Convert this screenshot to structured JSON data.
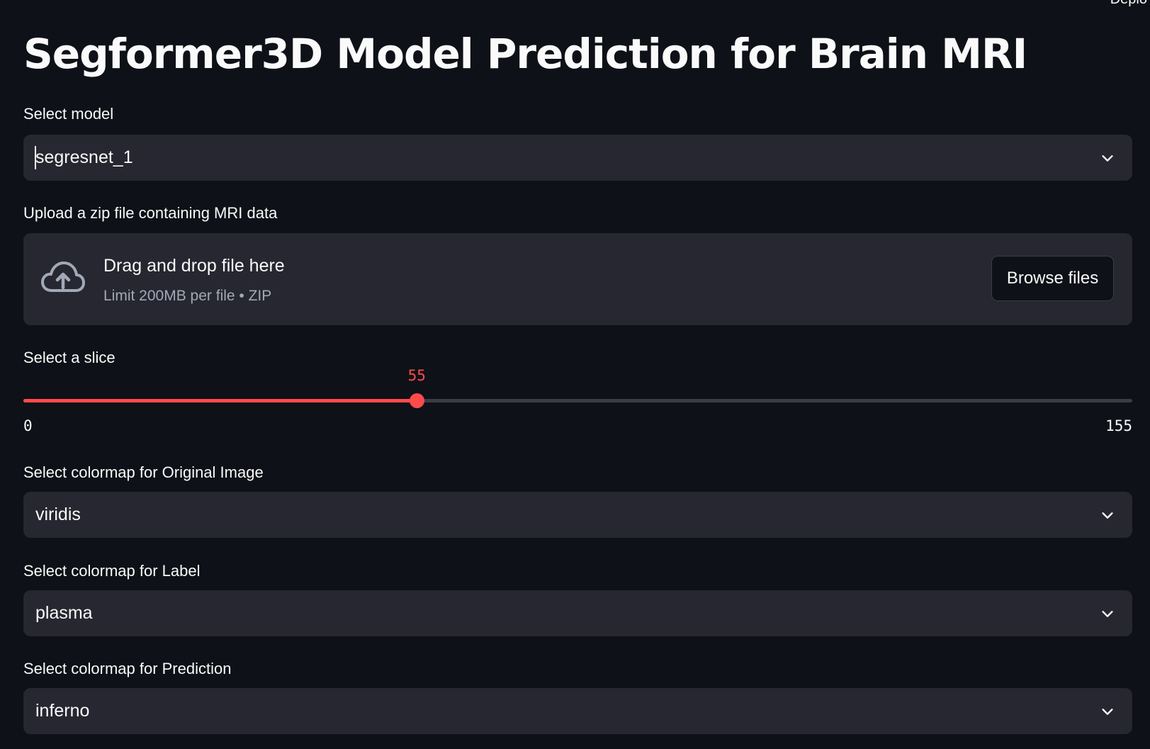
{
  "header": {
    "title": "Segformer3D Model Prediction for Brain MRI",
    "deploy_label": "Deplo"
  },
  "model_select": {
    "label": "Select model",
    "value": "segresnet_1"
  },
  "uploader": {
    "label": "Upload a zip file containing MRI data",
    "drag_text": "Drag and drop file here",
    "limit_text": "Limit 200MB per file • ZIP",
    "browse_label": "Browse files",
    "icon": "cloud-upload-icon"
  },
  "slice_slider": {
    "label": "Select a slice",
    "value": 55,
    "min": 0,
    "max": 155,
    "min_label": "0",
    "max_label": "155",
    "value_label": "55"
  },
  "colormap_original": {
    "label": "Select colormap for Original Image",
    "value": "viridis"
  },
  "colormap_label": {
    "label": "Select colormap for Label",
    "value": "plasma"
  },
  "colormap_prediction": {
    "label": "Select colormap for Prediction",
    "value": "inferno"
  },
  "colors": {
    "background": "#0e1117",
    "widget": "#262730",
    "accent": "#ff4b4b"
  }
}
